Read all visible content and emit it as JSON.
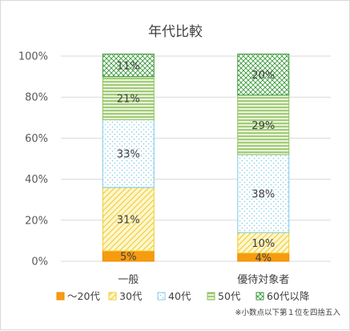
{
  "chart_data": {
    "type": "bar",
    "stacked": true,
    "percent": true,
    "title": "年代比較",
    "categories": [
      "一般",
      "優待対象者"
    ],
    "yticks": [
      "0%",
      "20%",
      "40%",
      "60%",
      "80%",
      "100%"
    ],
    "ylim": [
      0,
      100
    ],
    "grid": true,
    "legend_position": "bottom",
    "series": [
      {
        "name": "～20代",
        "values": [
          5,
          4
        ],
        "labels": [
          "5%",
          "4%"
        ],
        "color": "#f79b0f",
        "pattern": "solid"
      },
      {
        "name": "30代",
        "values": [
          31,
          10
        ],
        "labels": [
          "31%",
          "10%"
        ],
        "color": "#f5d33a",
        "pattern": "diagonal"
      },
      {
        "name": "40代",
        "values": [
          33,
          38
        ],
        "labels": [
          "33%",
          "38%"
        ],
        "color": "#6cc7e6",
        "pattern": "dots"
      },
      {
        "name": "50代",
        "values": [
          21,
          29
        ],
        "labels": [
          "21%",
          "29%"
        ],
        "color": "#8fc25a",
        "pattern": "hlines"
      },
      {
        "name": "60代以降",
        "values": [
          11,
          20
        ],
        "labels": [
          "11%",
          "20%"
        ],
        "color": "#3a9b3a",
        "pattern": "cross"
      }
    ],
    "note": "※小数点以下第１位を四捨五入"
  }
}
